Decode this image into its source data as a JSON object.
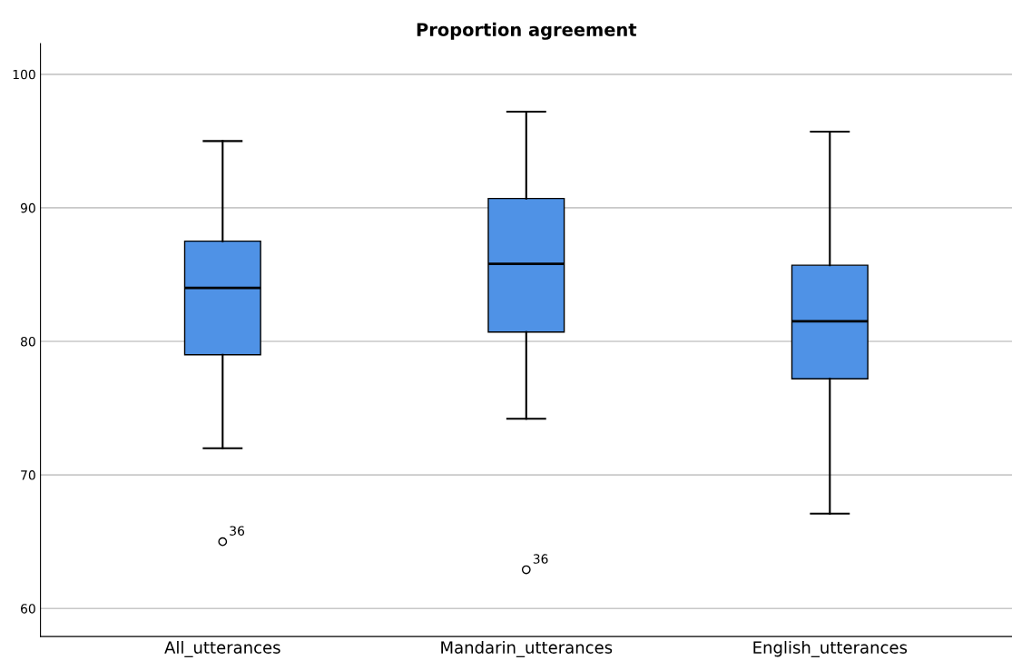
{
  "chart_data": {
    "type": "box",
    "title": "Proportion agreement",
    "categories": [
      "All_utterances",
      "Mandarin_utterances",
      "English_utterances"
    ],
    "boxes": [
      {
        "low": 72.0,
        "q1": 79.0,
        "median": 84.0,
        "q3": 87.5,
        "high": 95.0,
        "outliers": [
          65.0
        ]
      },
      {
        "low": 74.2,
        "q1": 80.7,
        "median": 85.8,
        "q3": 90.7,
        "high": 97.2,
        "outliers": [
          62.9
        ]
      },
      {
        "low": 67.1,
        "q1": 77.2,
        "median": 81.5,
        "q3": 85.7,
        "high": 95.7
      }
    ],
    "color": "#4f92e6",
    "ylim": [
      57.9,
      102.3
    ],
    "yticks": [
      60,
      70,
      80,
      90,
      100
    ],
    "grid": "y",
    "annotations": [
      "36",
      "36"
    ]
  }
}
